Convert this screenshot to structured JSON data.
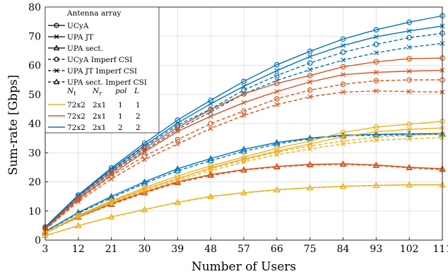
{
  "chart_data": {
    "type": "line",
    "title": "",
    "xlabel": "Number of Users",
    "ylabel": "Sum-rate [Gbps]",
    "x": [
      3,
      12,
      21,
      30,
      39,
      48,
      57,
      66,
      75,
      84,
      93,
      102,
      111
    ],
    "xlim": [
      3,
      111
    ],
    "ylim": [
      0,
      80
    ],
    "yticks": [
      0,
      10,
      20,
      30,
      40,
      50,
      60,
      70,
      80
    ],
    "grid": true,
    "legend_position": "top-left",
    "legend": {
      "title": "Antenna array",
      "marker_entries": [
        {
          "label": "UCyA",
          "marker": "circle",
          "dash": "solid"
        },
        {
          "label": "UPA JT",
          "marker": "cross",
          "dash": "solid"
        },
        {
          "label": "UPA sect.",
          "marker": "triangle",
          "dash": "solid"
        },
        {
          "label": "UCyA Imperf CSI",
          "marker": "circle",
          "dash": "dashed"
        },
        {
          "label": "UPA JT Imperf CSI",
          "marker": "cross",
          "dash": "dashed"
        },
        {
          "label": "UPA sect. Imperf CSI",
          "marker": "triangle",
          "dash": "dashed"
        }
      ],
      "table_headers": [
        "N",
        "t",
        "N",
        "r",
        "pol",
        "L"
      ],
      "color_entries": [
        {
          "color": "#EDB120",
          "nt": "72x2",
          "nr": "2x1",
          "pol": "1",
          "L": "1"
        },
        {
          "color": "#D95319",
          "nt": "72x2",
          "nr": "2x1",
          "pol": "1",
          "L": "2"
        },
        {
          "color": "#0072BD",
          "nt": "72x2",
          "nr": "2x1",
          "pol": "2",
          "L": "2"
        }
      ]
    },
    "series": [
      {
        "color": "#0072BD",
        "marker": "circle",
        "dash": "solid",
        "values": [
          4.5,
          15.5,
          24.8,
          33.3,
          41.2,
          48.0,
          54.5,
          60.2,
          64.8,
          69.0,
          72.2,
          74.8,
          77.0
        ]
      },
      {
        "color": "#0072BD",
        "marker": "cross",
        "dash": "solid",
        "values": [
          4.3,
          15.2,
          24.3,
          32.5,
          40.2,
          46.8,
          52.8,
          58.2,
          63.0,
          66.8,
          69.8,
          71.8,
          73.5
        ]
      },
      {
        "color": "#0072BD",
        "marker": "triangle",
        "dash": "solid",
        "values": [
          3.0,
          9.5,
          15.0,
          20.0,
          24.5,
          28.0,
          31.2,
          33.5,
          35.0,
          36.0,
          36.3,
          36.5,
          36.6
        ]
      },
      {
        "color": "#0072BD",
        "marker": "circle",
        "dash": "dashed",
        "values": [
          4.3,
          15.0,
          24.0,
          32.0,
          39.5,
          45.0,
          51.5,
          56.5,
          60.8,
          64.5,
          67.2,
          69.5,
          71.0
        ]
      },
      {
        "color": "#0072BD",
        "marker": "cross",
        "dash": "dashed",
        "values": [
          4.1,
          14.5,
          23.2,
          30.8,
          38.0,
          44.0,
          50.2,
          54.8,
          58.5,
          61.8,
          64.3,
          66.2,
          67.5
        ]
      },
      {
        "color": "#0072BD",
        "marker": "triangle",
        "dash": "dashed",
        "values": [
          2.9,
          9.2,
          14.5,
          19.5,
          23.8,
          27.3,
          30.5,
          33.0,
          34.8,
          35.8,
          36.0,
          36.2,
          36.3
        ]
      },
      {
        "color": "#D95319",
        "marker": "circle",
        "dash": "solid",
        "values": [
          4.0,
          14.5,
          23.5,
          31.5,
          38.7,
          44.8,
          50.2,
          53.8,
          56.5,
          59.5,
          61.2,
          62.3,
          62.5
        ]
      },
      {
        "color": "#D95319",
        "marker": "cross",
        "dash": "solid",
        "values": [
          3.8,
          14.0,
          22.5,
          30.3,
          37.3,
          42.5,
          47.2,
          51.0,
          54.3,
          56.8,
          57.6,
          58.0,
          58.3
        ]
      },
      {
        "color": "#D95319",
        "marker": "triangle",
        "dash": "solid",
        "values": [
          2.5,
          8.0,
          12.5,
          16.5,
          20.0,
          22.5,
          24.2,
          25.3,
          26.0,
          26.2,
          25.8,
          25.0,
          24.5
        ]
      },
      {
        "color": "#D95319",
        "marker": "circle",
        "dash": "dashed",
        "values": [
          3.8,
          13.8,
          22.0,
          28.8,
          34.5,
          40.0,
          44.3,
          48.5,
          51.5,
          53.5,
          54.7,
          55.0,
          55.0
        ]
      },
      {
        "color": "#D95319",
        "marker": "cross",
        "dash": "dashed",
        "values": [
          3.6,
          13.2,
          21.0,
          27.6,
          33.0,
          38.3,
          42.8,
          46.5,
          49.2,
          50.8,
          51.2,
          51.0,
          50.8
        ]
      },
      {
        "color": "#D95319",
        "marker": "triangle",
        "dash": "dashed",
        "values": [
          2.4,
          7.8,
          12.2,
          16.2,
          19.7,
          22.2,
          24.0,
          25.1,
          25.8,
          26.0,
          25.6,
          24.8,
          24.2
        ]
      },
      {
        "color": "#EDB120",
        "marker": "circle",
        "dash": "solid",
        "values": [
          2.5,
          8.5,
          13.5,
          18.0,
          22.0,
          25.5,
          28.5,
          31.5,
          34.0,
          37.0,
          38.8,
          39.8,
          40.8
        ]
      },
      {
        "color": "#EDB120",
        "marker": "cross",
        "dash": "solid",
        "values": [
          2.4,
          8.3,
          13.0,
          17.5,
          21.0,
          24.8,
          27.8,
          30.5,
          33.0,
          35.5,
          37.2,
          38.0,
          38.5
        ]
      },
      {
        "color": "#EDB120",
        "marker": "triangle",
        "dash": "solid",
        "values": [
          1.5,
          5.0,
          8.0,
          10.5,
          13.0,
          15.0,
          16.3,
          17.3,
          18.0,
          18.5,
          18.8,
          19.0,
          19.0
        ]
      },
      {
        "color": "#EDB120",
        "marker": "circle",
        "dash": "dashed",
        "values": [
          2.4,
          8.3,
          13.2,
          17.5,
          21.2,
          24.5,
          27.5,
          30.2,
          32.3,
          34.0,
          35.3,
          36.0,
          36.4
        ]
      },
      {
        "color": "#EDB120",
        "marker": "cross",
        "dash": "dashed",
        "values": [
          2.3,
          8.0,
          12.8,
          17.0,
          20.5,
          23.8,
          26.8,
          29.3,
          31.3,
          33.0,
          34.3,
          34.8,
          35.2
        ]
      },
      {
        "color": "#EDB120",
        "marker": "triangle",
        "dash": "dashed",
        "values": [
          1.5,
          4.9,
          7.9,
          10.4,
          12.9,
          14.9,
          16.2,
          17.2,
          17.9,
          18.4,
          18.7,
          18.9,
          18.9
        ]
      }
    ]
  }
}
